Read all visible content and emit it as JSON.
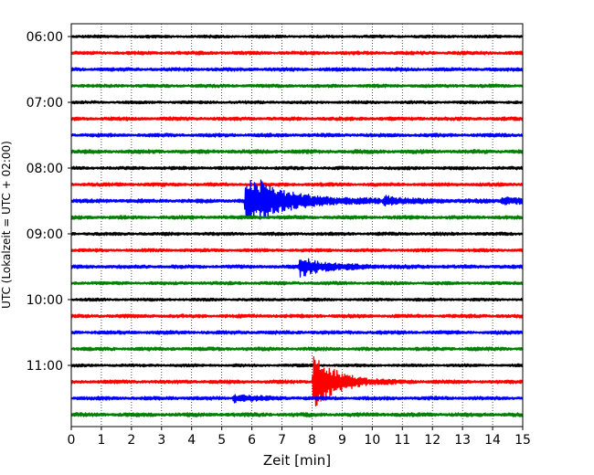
{
  "chart_data": {
    "type": "line",
    "title": "",
    "xlabel": "Zeit  [min]",
    "ylabel": "UTC (Lokalzeit = UTC + 02:00)",
    "xlim": [
      0,
      15
    ],
    "x_ticks": [
      0,
      1,
      2,
      3,
      4,
      5,
      6,
      7,
      8,
      9,
      10,
      11,
      12,
      13,
      14,
      15
    ],
    "y_tick_labels": [
      "06:00",
      "07:00",
      "08:00",
      "09:00",
      "10:00",
      "11:00"
    ],
    "y_tick_rows": [
      0,
      4,
      8,
      12,
      16,
      20
    ],
    "grid": "vertical-dotted",
    "row_minutes": 15,
    "color_cycle": [
      "#000000",
      "#ff0000",
      "#0000ff",
      "#008000"
    ],
    "rows": [
      {
        "start": "06:00",
        "noise": 1.0
      },
      {
        "start": "06:15",
        "noise": 1.2
      },
      {
        "start": "06:30",
        "noise": 1.2
      },
      {
        "start": "06:45",
        "noise": 1.1
      },
      {
        "start": "07:00",
        "noise": 1.0
      },
      {
        "start": "07:15",
        "noise": 1.2
      },
      {
        "start": "07:30",
        "noise": 1.2
      },
      {
        "start": "07:45",
        "noise": 1.3
      },
      {
        "start": "08:00",
        "noise": 1.1
      },
      {
        "start": "08:15",
        "noise": 1.2
      },
      {
        "start": "08:30",
        "noise": 1.3,
        "events": [
          {
            "t": 5.8,
            "amp": 26,
            "dur": 0.8
          },
          {
            "t": 6.3,
            "amp": 8,
            "dur": 1.8
          },
          {
            "t": 10.4,
            "amp": 4,
            "dur": 0.6
          },
          {
            "t": 14.3,
            "amp": 4,
            "dur": 0.6
          }
        ]
      },
      {
        "start": "08:45",
        "noise": 1.2
      },
      {
        "start": "09:00",
        "noise": 1.1
      },
      {
        "start": "09:15",
        "noise": 1.1
      },
      {
        "start": "09:30",
        "noise": 1.2,
        "events": [
          {
            "t": 7.6,
            "amp": 10,
            "dur": 0.9
          }
        ]
      },
      {
        "start": "09:45",
        "noise": 1.1
      },
      {
        "start": "10:00",
        "noise": 1.0
      },
      {
        "start": "10:15",
        "noise": 1.2
      },
      {
        "start": "10:30",
        "noise": 1.2
      },
      {
        "start": "10:45",
        "noise": 1.2
      },
      {
        "start": "11:00",
        "noise": 1.0
      },
      {
        "start": "11:15",
        "noise": 1.2,
        "events": [
          {
            "t": 8.05,
            "amp": 34,
            "dur": 0.7
          }
        ]
      },
      {
        "start": "11:30",
        "noise": 1.2,
        "events": [
          {
            "t": 5.4,
            "amp": 4,
            "dur": 0.6
          }
        ]
      },
      {
        "start": "11:45",
        "noise": 1.3
      }
    ]
  }
}
